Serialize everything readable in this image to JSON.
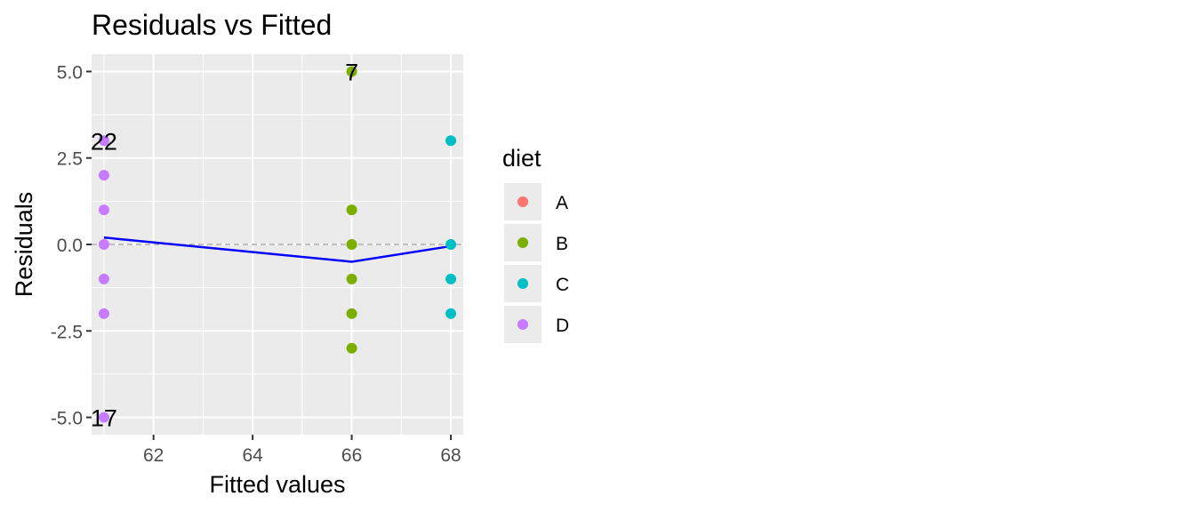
{
  "chart_data": {
    "type": "scatter",
    "title": "Residuals vs Fitted",
    "xlabel": "Fitted values",
    "ylabel": "Residuals",
    "xlim": [
      60.75,
      68.25
    ],
    "ylim": [
      -5.5,
      5.5
    ],
    "x_ticks": [
      62,
      64,
      66,
      68
    ],
    "x_tick_labels": [
      "62",
      "64",
      "66",
      "68"
    ],
    "y_ticks": [
      5.0,
      2.5,
      0.0,
      -2.5,
      -5.0
    ],
    "y_tick_labels": [
      "5.0",
      "2.5",
      "0.0",
      "-2.5",
      "-5.0"
    ],
    "grid": true,
    "legend": {
      "title": "diet",
      "placement": "right",
      "entries": [
        {
          "label": "A",
          "color": "#F8766D"
        },
        {
          "label": "B",
          "color": "#7CAE00"
        },
        {
          "label": "C",
          "color": "#00BFC4"
        },
        {
          "label": "D",
          "color": "#C77CFF"
        }
      ]
    },
    "series": [
      {
        "name": "B",
        "color": "#7CAE00",
        "points": [
          [
            66,
            5
          ],
          [
            66,
            1
          ],
          [
            66,
            0
          ],
          [
            66,
            -1
          ],
          [
            66,
            -2
          ],
          [
            66,
            -3
          ]
        ]
      },
      {
        "name": "C",
        "color": "#00BFC4",
        "points": [
          [
            68,
            3
          ],
          [
            68,
            0
          ],
          [
            68,
            -1
          ],
          [
            68,
            -2
          ]
        ]
      },
      {
        "name": "D",
        "color": "#C77CFF",
        "points": [
          [
            61,
            3
          ],
          [
            61,
            2
          ],
          [
            61,
            1
          ],
          [
            61,
            0
          ],
          [
            61,
            -1
          ],
          [
            61,
            -2
          ],
          [
            61,
            -5
          ]
        ]
      }
    ],
    "smooth_line": {
      "color": "#0000FF",
      "points": [
        [
          61,
          0.2
        ],
        [
          66,
          -0.5
        ],
        [
          68,
          -0.05
        ]
      ]
    },
    "reference_line": {
      "y": 0,
      "style": "dashed"
    },
    "point_labels": [
      {
        "text": "7",
        "x": 66,
        "y": 5
      },
      {
        "text": "22",
        "x": 61,
        "y": 3
      },
      {
        "text": "17",
        "x": 61,
        "y": -5
      }
    ]
  }
}
